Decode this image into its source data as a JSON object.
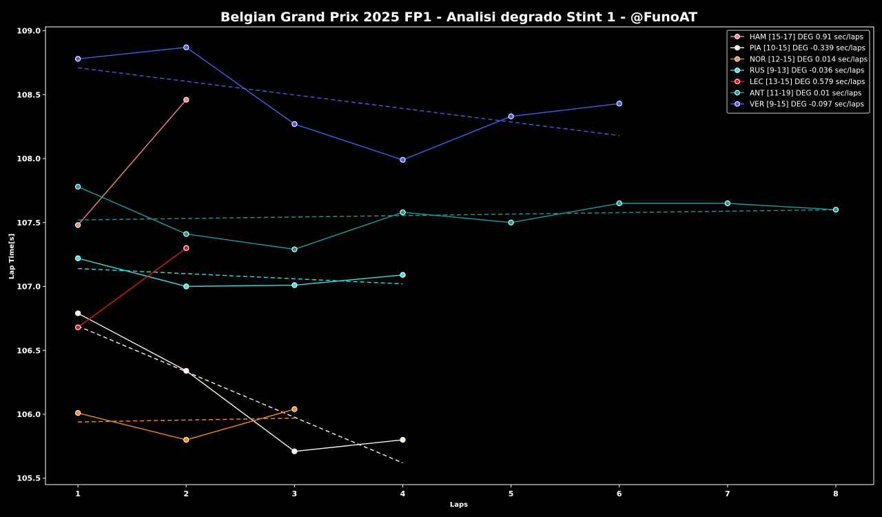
{
  "chart_data": {
    "type": "line",
    "title": "Belgian Grand Prix 2025 FP1 - Analisi degrado Stint 1 - @FunoAT",
    "xlabel": "Laps",
    "ylabel": "Lap Time[s]",
    "xlim": [
      0.7,
      8.35
    ],
    "ylim": [
      105.45,
      109.03
    ],
    "xticks": [
      1,
      2,
      3,
      4,
      5,
      6,
      7,
      8
    ],
    "yticks": [
      "105.5",
      "106.0",
      "106.5",
      "107.0",
      "107.5",
      "108.0",
      "108.5",
      "109.0"
    ],
    "grid": false,
    "legend_position": "top-right",
    "background": "#000000",
    "series": [
      {
        "name": "HAM [15-17] DEG 0.91 sec/laps",
        "color": "#f08a7a",
        "x": [
          1,
          2
        ],
        "y": [
          107.48,
          108.46
        ],
        "trend": []
      },
      {
        "name": "PIA [10-15] DEG -0.339 sec/laps",
        "color": "#fff3dc",
        "x": [
          1,
          2,
          3,
          4
        ],
        "y": [
          106.79,
          106.34,
          105.71,
          105.8
        ],
        "trend": [
          106.69,
          105.62
        ]
      },
      {
        "name": "NOR [12-15] DEG 0.014 sec/laps",
        "color": "#ff8c1a",
        "x": [
          1,
          2,
          3
        ],
        "y": [
          106.01,
          105.8,
          106.04
        ],
        "trend": [
          105.94,
          105.97
        ]
      },
      {
        "name": "RUS [9-13] DEG -0.036 sec/laps",
        "color": "#2ee6e6",
        "x": [
          1,
          2,
          3,
          4
        ],
        "y": [
          107.22,
          107.0,
          107.01,
          107.09
        ],
        "trend": [
          107.14,
          107.02
        ]
      },
      {
        "name": "LEC [13-15] DEG 0.579 sec/laps",
        "color": "#e8141f",
        "x": [
          1,
          2
        ],
        "y": [
          106.68,
          107.3
        ],
        "trend": []
      },
      {
        "name": "ANT [11-19] DEG 0.01 sec/laps",
        "color": "#18a0a0",
        "x": [
          1,
          2,
          3,
          4,
          5,
          6,
          7,
          8
        ],
        "y": [
          107.78,
          107.41,
          107.29,
          107.58,
          107.5,
          107.65,
          107.65,
          107.6
        ],
        "trend": [
          107.52,
          107.6
        ]
      },
      {
        "name": "VER [9-15] DEG -0.097 sec/laps",
        "color": "#4a5cf0",
        "x": [
          1,
          2,
          3,
          4,
          5,
          6
        ],
        "y": [
          108.78,
          108.87,
          108.27,
          107.99,
          108.33,
          108.43
        ],
        "trend": [
          108.71,
          108.18
        ]
      }
    ]
  }
}
